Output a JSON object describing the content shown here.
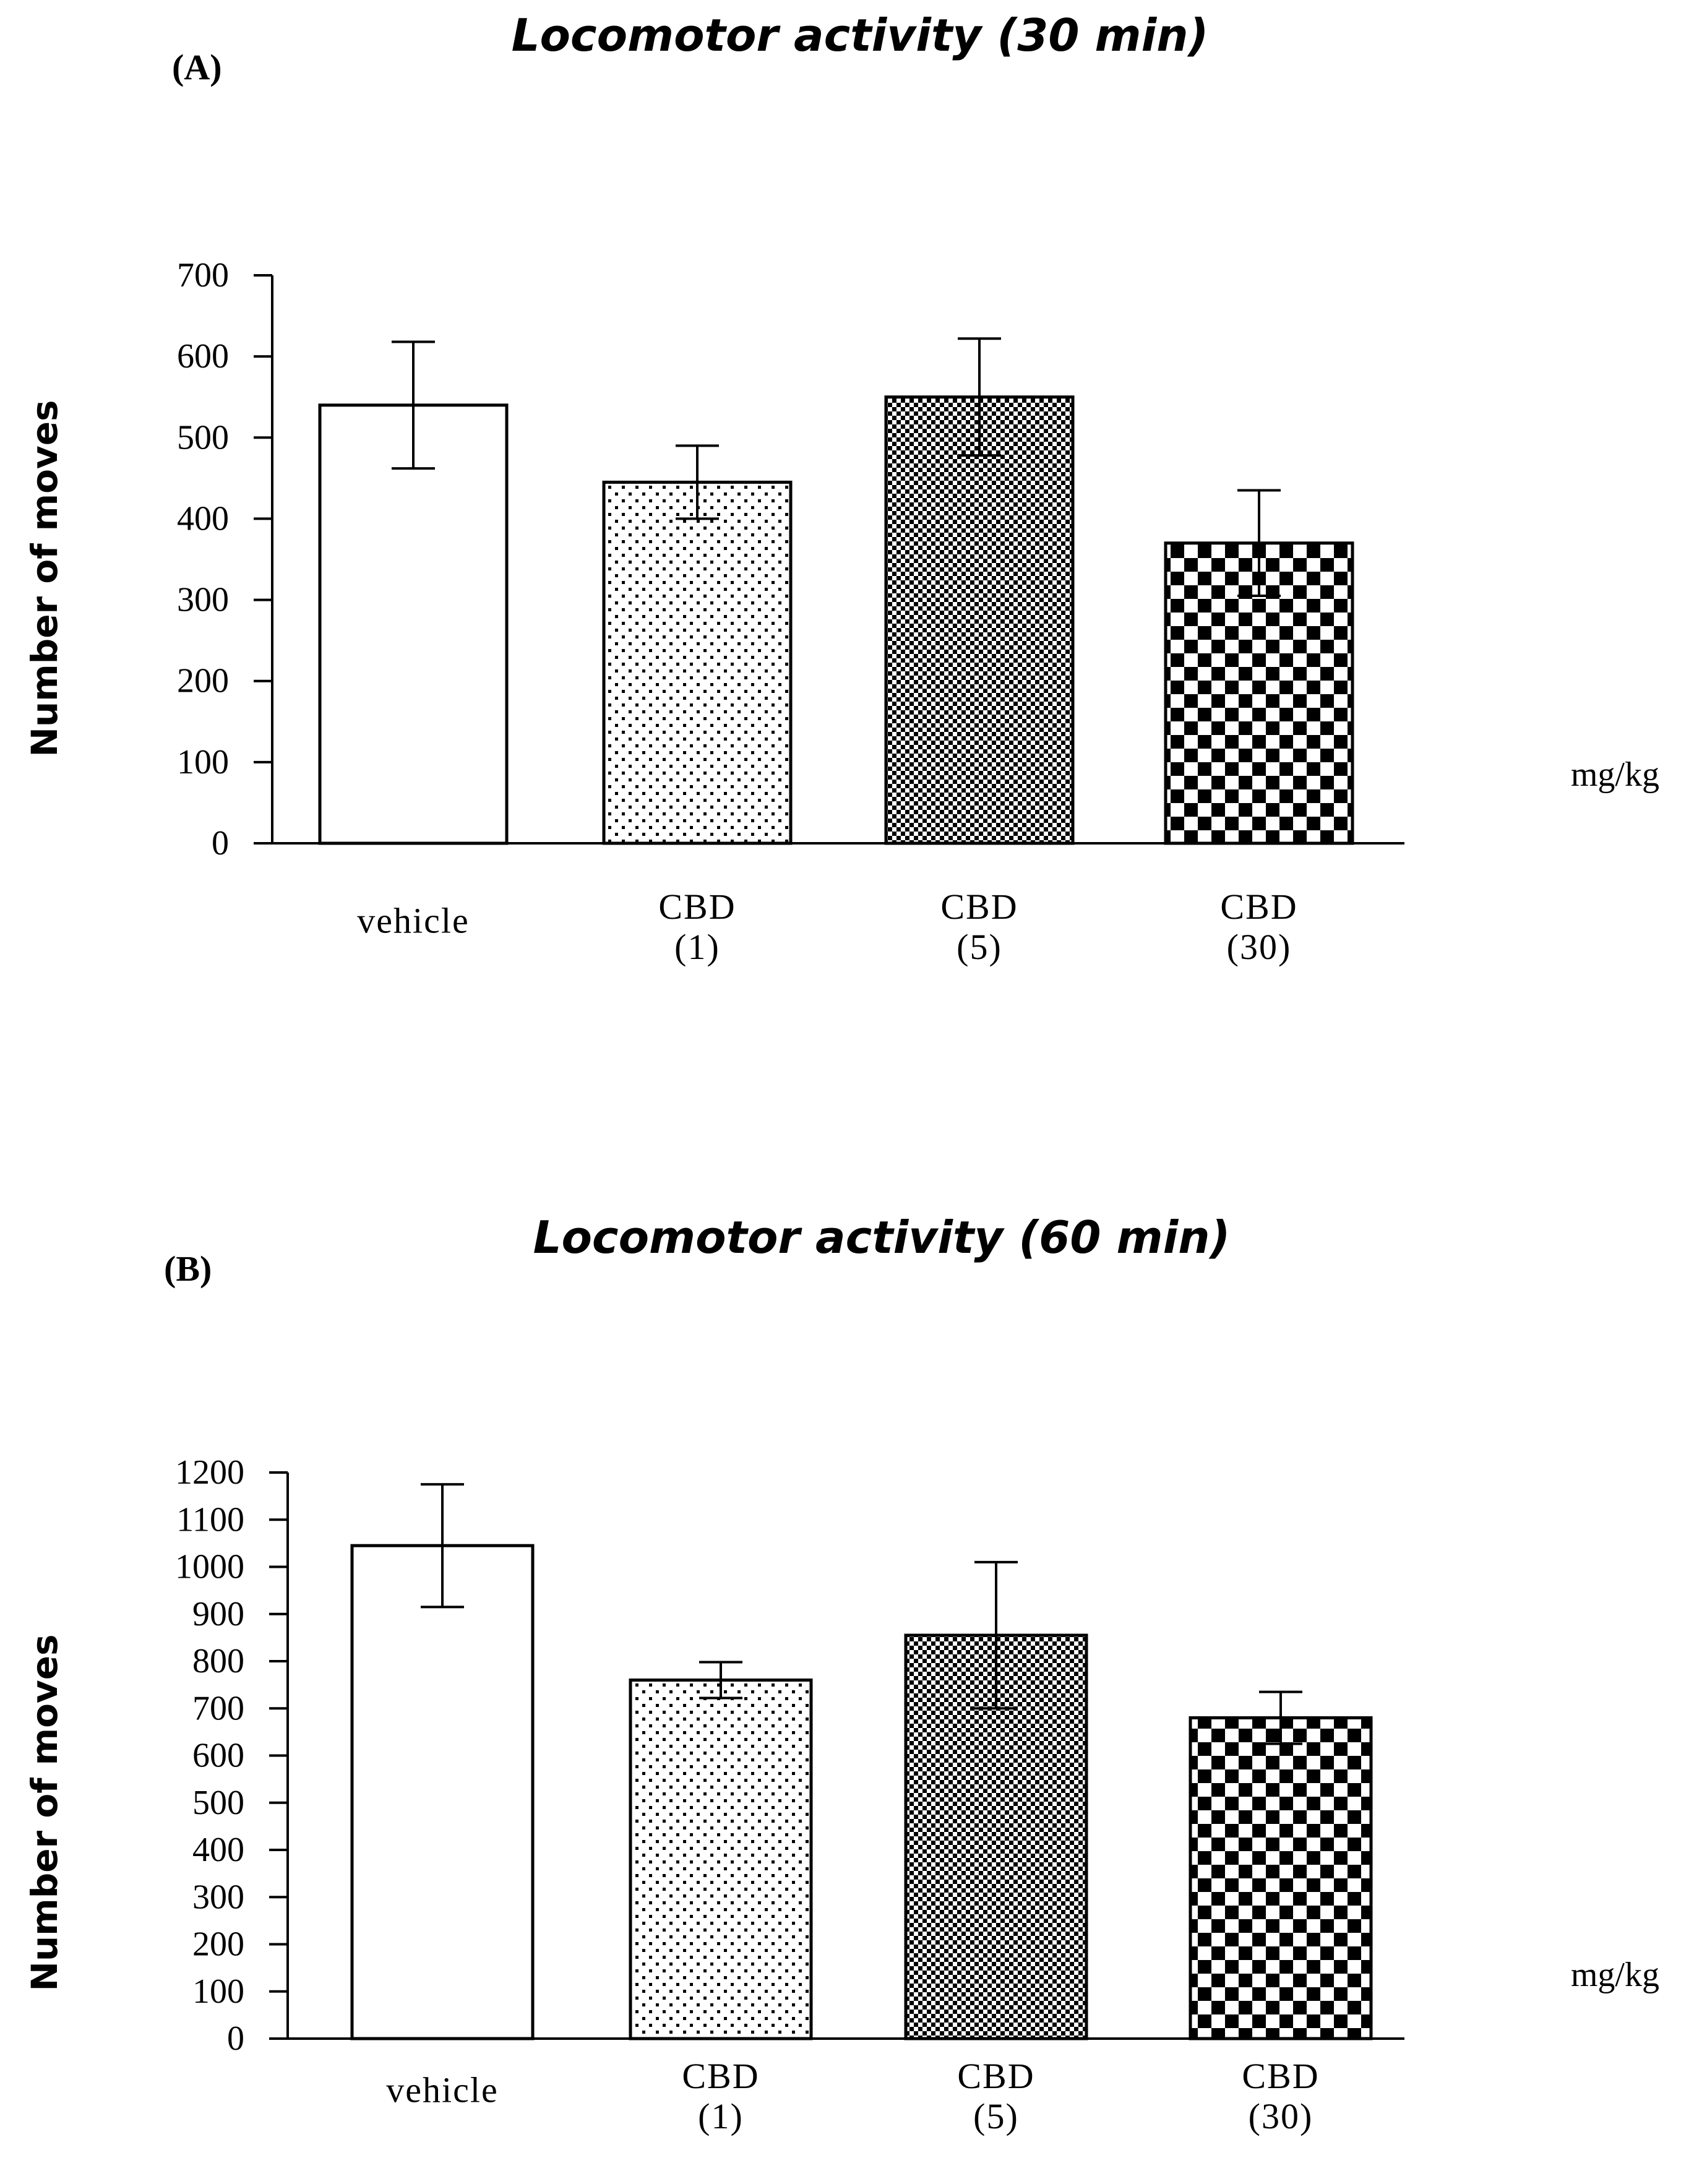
{
  "chart_data": [
    {
      "type": "bar",
      "panel_label": "(A)",
      "title": "Locomotor activity (30 min)",
      "ylabel": "Number of moves",
      "unit_label": "mg/kg",
      "ylim": [
        0,
        700
      ],
      "yticks": [
        0,
        100,
        200,
        300,
        400,
        500,
        600,
        700
      ],
      "categories": [
        [
          "vehicle"
        ],
        [
          "CBD",
          "(1)"
        ],
        [
          "CBD",
          "(5)"
        ],
        [
          "CBD",
          "(30)"
        ]
      ],
      "values": [
        540,
        445,
        550,
        370
      ],
      "errors": [
        78,
        45,
        72,
        65
      ],
      "patterns": [
        "none",
        "dots",
        "fine-check",
        "coarse-check"
      ],
      "grid": false
    },
    {
      "type": "bar",
      "panel_label": "(B)",
      "title": "Locomotor activity (60 min)",
      "ylabel": "Number of moves",
      "unit_label": "mg/kg",
      "ylim": [
        0,
        1200
      ],
      "yticks": [
        0,
        100,
        200,
        300,
        400,
        500,
        600,
        700,
        800,
        900,
        1000,
        1100,
        1200
      ],
      "categories": [
        [
          "vehicle"
        ],
        [
          "CBD",
          "(1)"
        ],
        [
          "CBD",
          "(5)"
        ],
        [
          "CBD",
          "(30)"
        ]
      ],
      "values": [
        1045,
        760,
        855,
        680
      ],
      "errors": [
        130,
        38,
        155,
        55
      ],
      "patterns": [
        "none",
        "dots",
        "fine-check",
        "coarse-check"
      ],
      "grid": false
    }
  ]
}
